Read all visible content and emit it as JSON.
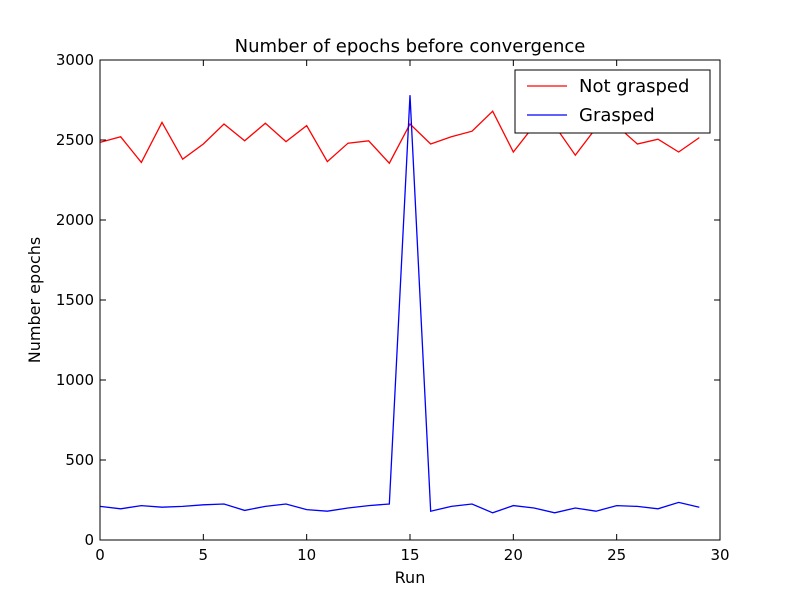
{
  "chart_data": {
    "type": "line",
    "title": "Number of epochs before convergence",
    "xlabel": "Run",
    "ylabel": "Number epochs",
    "xlim": [
      0,
      30
    ],
    "ylim": [
      0,
      3000
    ],
    "x_ticks": [
      0,
      5,
      10,
      15,
      20,
      25,
      30
    ],
    "y_ticks": [
      0,
      500,
      1000,
      1500,
      2000,
      2500,
      3000
    ],
    "grid": false,
    "legend_position": "top-right",
    "x": [
      0,
      1,
      2,
      3,
      4,
      5,
      6,
      7,
      8,
      9,
      10,
      11,
      12,
      13,
      14,
      15,
      16,
      17,
      18,
      19,
      20,
      21,
      22,
      23,
      24,
      25,
      26,
      27,
      28,
      29
    ],
    "series": [
      {
        "name": "Not grasped",
        "color": "#ff0000",
        "values": [
          2485,
          2520,
          2360,
          2610,
          2380,
          2475,
          2600,
          2495,
          2605,
          2490,
          2590,
          2365,
          2480,
          2495,
          2355,
          2600,
          2475,
          2520,
          2555,
          2680,
          2425,
          2590,
          2590,
          2405,
          2575,
          2590,
          2475,
          2505,
          2425,
          2515
        ]
      },
      {
        "name": "Grasped",
        "color": "#0000ff",
        "values": [
          210,
          195,
          215,
          205,
          210,
          220,
          225,
          185,
          210,
          225,
          190,
          180,
          200,
          215,
          225,
          2780,
          180,
          210,
          225,
          170,
          215,
          200,
          170,
          200,
          180,
          215,
          210,
          195,
          235,
          205
        ]
      }
    ]
  }
}
